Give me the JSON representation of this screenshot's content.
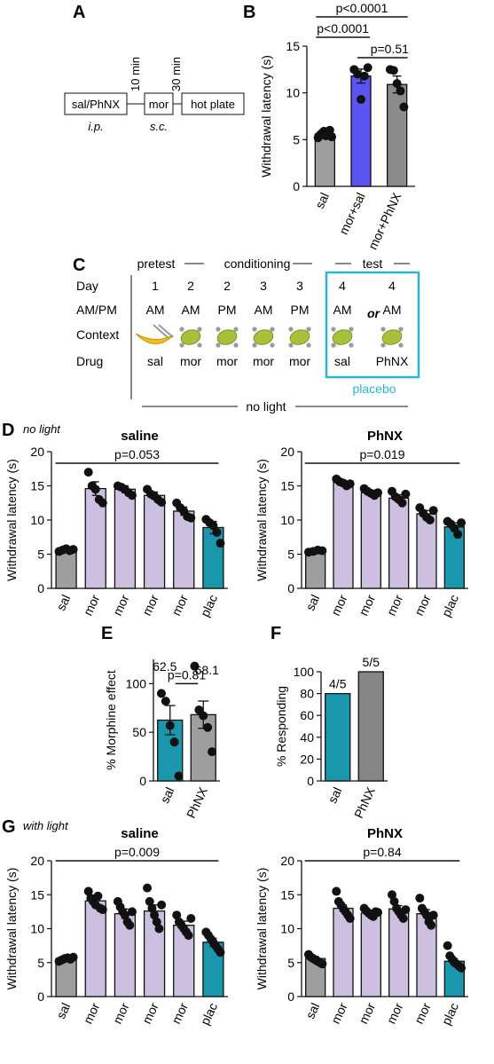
{
  "colors": {
    "sal": "#9e9e9e",
    "mor_blue": "#5b54f0",
    "phnx_gray": "#8c8c8c",
    "mor_lav": "#cdbfe0",
    "plac": "#1a97ad",
    "sal_f": "#1a97ad",
    "phnx_f": "#858585",
    "box": "#2bb5d3",
    "dot": "#111111",
    "banana": "#f2c01b",
    "lime": "#a6c23a",
    "gray_dot": "#9a9a9a"
  },
  "panels": {
    "A": "A",
    "B": "B",
    "C": "C",
    "D": "D",
    "E": "E",
    "F": "F",
    "G": "G"
  },
  "panelA": {
    "box1": "sal/PhNX",
    "box2": "mor",
    "box3": "hot plate",
    "gap1": "10 min",
    "gap2": "30 min",
    "route1": "i.p.",
    "route2": "s.c."
  },
  "panelC": {
    "header_pretest": "pretest",
    "header_conditioning": "conditioning",
    "header_test": "test",
    "row_labels": [
      "Day",
      "AM/PM",
      "Context",
      "Drug"
    ],
    "days": [
      "1",
      "2",
      "2",
      "3",
      "3",
      "4",
      "4"
    ],
    "ampm": [
      "AM",
      "AM",
      "PM",
      "AM",
      "PM",
      "AM",
      "AM"
    ],
    "drugs": [
      "sal",
      "mor",
      "mor",
      "mor",
      "mor",
      "sal",
      "PhNX"
    ],
    "or_label": "or",
    "placebo_label": "placebo",
    "no_light_label": "no light",
    "contexts": [
      "banana",
      "lime",
      "lime",
      "lime",
      "lime",
      "lime",
      "lime"
    ]
  },
  "sublabels": {
    "D": "no light",
    "G": "with light"
  },
  "chart_data": [
    {
      "id": "B",
      "type": "bar",
      "ylabel": "Withdrawal latency (s)",
      "ylim": [
        0,
        15
      ],
      "yticks": [
        "0",
        "5",
        "10",
        "15"
      ],
      "categories": [
        "sal",
        "mor+sal",
        "mor+PhNX"
      ],
      "values": [
        5.6,
        11.8,
        10.9
      ],
      "errors": [
        0.25,
        0.75,
        0.9
      ],
      "colors": [
        "#9e9e9e",
        "#5b54f0",
        "#8c8c8c"
      ],
      "points": [
        [
          5.2,
          5.5,
          5.7,
          5.9,
          5.4,
          5.8,
          6.0,
          5.3
        ],
        [
          12.5,
          12.0,
          9.3,
          11.8,
          12.7
        ],
        [
          12.5,
          12.4,
          11.0,
          10.2,
          8.5
        ]
      ],
      "annotations": [
        {
          "label": "p<0.0001",
          "from": 0,
          "to": 2
        },
        {
          "label": "p<0.0001",
          "from": 0,
          "to": 1
        },
        {
          "label": "p=0.51",
          "from": 1,
          "to": 2
        }
      ]
    },
    {
      "id": "D-saline",
      "type": "bar",
      "title": "saline",
      "ylabel": "Withdrawal latency (s)",
      "ylim": [
        0,
        20
      ],
      "yticks": [
        "0",
        "5",
        "10",
        "15",
        "20"
      ],
      "categories": [
        "sal",
        "mor",
        "mor",
        "mor",
        "mor",
        "plac"
      ],
      "values": [
        5.6,
        14.6,
        14.5,
        13.6,
        11.3,
        8.9
      ],
      "errors": [
        0.2,
        1.0,
        0.5,
        0.5,
        0.6,
        0.9
      ],
      "colors": [
        "#9e9e9e",
        "#cdbfe0",
        "#cdbfe0",
        "#cdbfe0",
        "#cdbfe0",
        "#1a97ad"
      ],
      "points": [
        [
          5.4,
          5.6,
          5.8,
          5.5,
          5.7
        ],
        [
          17.0,
          15.0,
          14.5,
          13.0,
          12.5
        ],
        [
          15.0,
          14.8,
          14.5,
          14.0,
          13.6
        ],
        [
          14.5,
          13.8,
          13.5,
          13.0,
          12.6
        ],
        [
          12.5,
          11.8,
          11.3,
          10.5,
          10.3
        ],
        [
          10.1,
          9.6,
          9.2,
          8.2,
          6.6
        ]
      ],
      "annotations": [
        {
          "label": "p=0.053",
          "from": 0,
          "to": 5
        }
      ]
    },
    {
      "id": "D-PhNX",
      "type": "bar",
      "title": "PhNX",
      "ylabel": "Withdrawal latency (s)",
      "ylim": [
        0,
        20
      ],
      "yticks": [
        "0",
        "5",
        "10",
        "15",
        "20"
      ],
      "categories": [
        "sal",
        "mor",
        "mor",
        "mor",
        "mor",
        "plac"
      ],
      "values": [
        5.4,
        15.5,
        14.0,
        13.2,
        10.9,
        9.0
      ],
      "errors": [
        0.2,
        0.3,
        0.35,
        0.5,
        0.5,
        0.6
      ],
      "colors": [
        "#9e9e9e",
        "#cdbfe0",
        "#cdbfe0",
        "#cdbfe0",
        "#cdbfe0",
        "#1a97ad"
      ],
      "points": [
        [
          5.3,
          5.4,
          5.6,
          5.5
        ],
        [
          16.0,
          15.6,
          15.4,
          15.0,
          15.3
        ],
        [
          14.6,
          14.2,
          13.9,
          13.6,
          14.0
        ],
        [
          14.2,
          13.4,
          13.0,
          12.5,
          13.8
        ],
        [
          11.8,
          11.0,
          10.4,
          10.0,
          11.4
        ],
        [
          9.8,
          9.4,
          8.8,
          7.9,
          9.6
        ]
      ],
      "annotations": [
        {
          "label": "p=0.019",
          "from": 0,
          "to": 5
        }
      ]
    },
    {
      "id": "E",
      "type": "bar",
      "ylabel": "% Morphine effect",
      "ylim": [
        0,
        125
      ],
      "yticks": [
        "0",
        "50",
        "100"
      ],
      "categories": [
        "sal",
        "PhNX"
      ],
      "values": [
        62.5,
        68.1
      ],
      "errors": [
        15.0,
        14.0
      ],
      "data_labels": [
        "62.5",
        "68.1"
      ],
      "colors": [
        "#1a97ad",
        "#9e9e9e"
      ],
      "points": [
        [
          90,
          82,
          57,
          40,
          5
        ],
        [
          118,
          73,
          67,
          55,
          30
        ]
      ],
      "annotations": [
        {
          "label": "p=0.81",
          "from": 0,
          "to": 1
        }
      ]
    },
    {
      "id": "F",
      "type": "bar",
      "ylabel": "% Responding",
      "ylim": [
        0,
        100
      ],
      "yticks": [
        "0",
        "20",
        "40",
        "60",
        "80",
        "100"
      ],
      "categories": [
        "sal",
        "PhNX"
      ],
      "values": [
        80,
        100
      ],
      "data_labels": [
        "4/5",
        "5/5"
      ],
      "colors": [
        "#1a97ad",
        "#858585"
      ]
    },
    {
      "id": "G-saline",
      "type": "bar",
      "title": "saline",
      "ylabel": "Withdrawal latency (s)",
      "ylim": [
        0,
        20
      ],
      "yticks": [
        "0",
        "5",
        "10",
        "15",
        "20"
      ],
      "categories": [
        "sal",
        "mor",
        "mor",
        "mor",
        "mor",
        "plac"
      ],
      "values": [
        5.5,
        14.1,
        12.2,
        12.6,
        10.5,
        8.0
      ],
      "errors": [
        0.2,
        0.6,
        0.7,
        0.9,
        0.6,
        0.6
      ],
      "colors": [
        "#9e9e9e",
        "#cdbfe0",
        "#cdbfe0",
        "#cdbfe0",
        "#cdbfe0",
        "#1a97ad"
      ],
      "points": [
        [
          5.2,
          5.4,
          5.6,
          5.7,
          5.5,
          5.8
        ],
        [
          15.5,
          14.5,
          14.0,
          13.5,
          14.8,
          13.0,
          12.8
        ],
        [
          14.0,
          13.2,
          12.5,
          12.0,
          11.0,
          10.5,
          12.5
        ],
        [
          16.0,
          14.0,
          13.0,
          12.0,
          11.0,
          10.0,
          13.5
        ],
        [
          12.0,
          11.0,
          10.5,
          10.0,
          9.5,
          9.0,
          11.5
        ],
        [
          9.5,
          9.0,
          8.5,
          8.0,
          7.5,
          7.0,
          6.5
        ]
      ],
      "annotations": [
        {
          "label": "p=0.009",
          "from": 0,
          "to": 5
        }
      ]
    },
    {
      "id": "G-PhNX",
      "type": "bar",
      "title": "PhNX",
      "ylabel": "Withdrawal latency (s)",
      "ylim": [
        0,
        20
      ],
      "yticks": [
        "0",
        "5",
        "10",
        "15",
        "20"
      ],
      "categories": [
        "sal",
        "mor",
        "mor",
        "mor",
        "mor",
        "plac"
      ],
      "values": [
        5.6,
        13.0,
        12.3,
        12.9,
        12.2,
        5.2
      ],
      "errors": [
        0.3,
        0.5,
        0.3,
        0.5,
        0.6,
        0.4
      ],
      "colors": [
        "#9e9e9e",
        "#cdbfe0",
        "#cdbfe0",
        "#cdbfe0",
        "#cdbfe0",
        "#1a97ad"
      ],
      "points": [
        [
          6.2,
          5.8,
          5.6,
          5.4,
          5.2,
          5.0,
          4.8
        ],
        [
          15.5,
          14.0,
          13.5,
          13.0,
          12.5,
          12.0,
          11.5
        ],
        [
          13.0,
          12.6,
          12.3,
          12.0,
          11.8,
          12.5,
          12.4
        ],
        [
          15.0,
          14.0,
          13.0,
          12.5,
          12.0,
          11.5,
          12.8
        ],
        [
          14.5,
          13.0,
          12.5,
          12.0,
          11.0,
          10.5,
          12.0
        ],
        [
          7.5,
          6.0,
          5.5,
          5.0,
          4.8,
          4.5,
          4.2
        ]
      ],
      "annotations": [
        {
          "label": "p=0.84",
          "from": 0,
          "to": 5
        }
      ]
    }
  ]
}
